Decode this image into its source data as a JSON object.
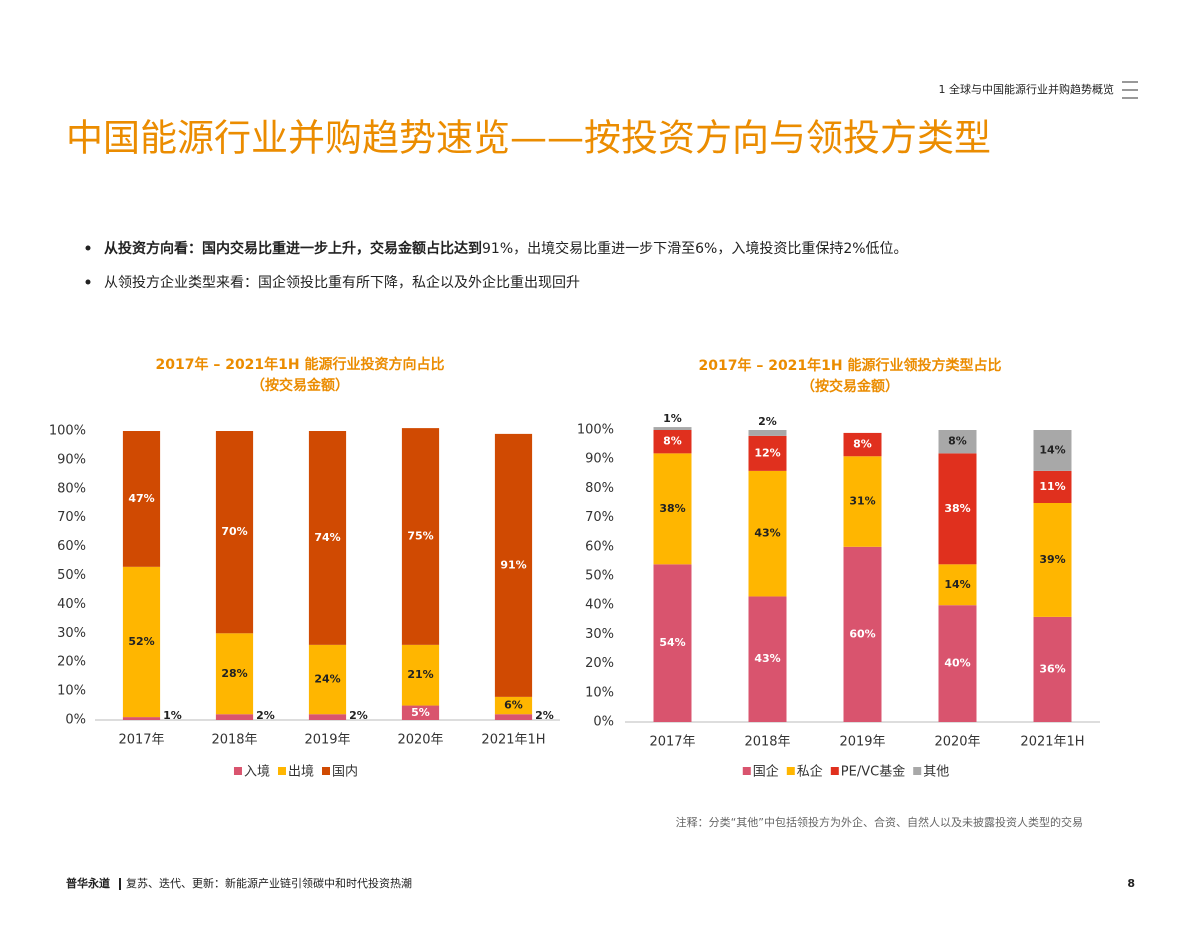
{
  "header": {
    "section": "1 全球与中国能源行业并购趋势概览"
  },
  "title": "中国能源行业并购趋势速览——按投资方向与领投方类型",
  "bullets": [
    {
      "bold": "从投资方向看：国内交易比重进一步上升，交易金额占比达到",
      "text": "91%，出境交易比重进一步下滑至6%，入境投资比重保持2%低位。"
    },
    {
      "text": "从领投方企业类型来看：国企领投比重有所下降，私企以及外企比重出现回升"
    }
  ],
  "chart_data": [
    {
      "type": "bar",
      "stacked": true,
      "title": "2017年 – 2021年1H 能源行业投资方向占比",
      "subtitle": "（按交易金额）",
      "categories": [
        "2017年",
        "2018年",
        "2019年",
        "2020年",
        "2021年1H"
      ],
      "series": [
        {
          "name": "入境",
          "color": "#d9546e",
          "values": [
            1,
            2,
            2,
            5,
            2
          ],
          "value_labels": [
            "1%",
            "2%",
            "2%",
            "5%",
            "2%"
          ]
        },
        {
          "name": "出境",
          "color": "#ffb600",
          "values": [
            52,
            28,
            24,
            21,
            6
          ],
          "value_labels": [
            "52%",
            "28%",
            "24%",
            "21%",
            "6%"
          ]
        },
        {
          "name": "国内",
          "color": "#d04a02",
          "values": [
            47,
            70,
            74,
            75,
            91
          ],
          "value_labels": [
            "47%",
            "70%",
            "74%",
            "75%",
            "91%"
          ]
        }
      ],
      "ylim": [
        0,
        100
      ],
      "yticks": [
        {
          "value": 0,
          "label": "0%"
        },
        {
          "value": 10,
          "label": "10%"
        },
        {
          "value": 20,
          "label": "20%"
        },
        {
          "value": 30,
          "label": "30%"
        },
        {
          "value": 40,
          "label": "40%"
        },
        {
          "value": 50,
          "label": "50%"
        },
        {
          "value": 60,
          "label": "60%"
        },
        {
          "value": 70,
          "label": "70%"
        },
        {
          "value": 80,
          "label": "80%"
        },
        {
          "value": 90,
          "label": "90%"
        },
        {
          "value": 100,
          "label": "100%"
        }
      ],
      "legend": "bottom"
    },
    {
      "type": "bar",
      "stacked": true,
      "title": "2017年 – 2021年1H 能源行业领投方类型占比",
      "subtitle": "（按交易金额）",
      "categories": [
        "2017年",
        "2018年",
        "2019年",
        "2020年",
        "2021年1H"
      ],
      "series": [
        {
          "name": "国企",
          "color": "#d9546e",
          "values": [
            54,
            43,
            60,
            40,
            36
          ],
          "value_labels": [
            "54%",
            "43%",
            "60%",
            "40%",
            "36%"
          ]
        },
        {
          "name": "私企",
          "color": "#ffb600",
          "values": [
            38,
            43,
            31,
            14,
            39
          ],
          "value_labels": [
            "38%",
            "43%",
            "31%",
            "14%",
            "39%"
          ]
        },
        {
          "name": "PE/VC基金",
          "color": "#e0301e",
          "values": [
            8,
            12,
            8,
            38,
            11
          ],
          "value_labels": [
            "8%",
            "12%",
            "8%",
            "38%",
            "11%"
          ]
        },
        {
          "name": "其他",
          "color": "#a8a8a8",
          "values": [
            1,
            2,
            null,
            8,
            14
          ],
          "value_labels": [
            "1%",
            "2%",
            null,
            "8%",
            "14%"
          ]
        }
      ],
      "ylim": [
        0,
        100
      ],
      "yticks": [
        {
          "value": 0,
          "label": "0%"
        },
        {
          "value": 10,
          "label": "10%"
        },
        {
          "value": 20,
          "label": "20%"
        },
        {
          "value": 30,
          "label": "30%"
        },
        {
          "value": 40,
          "label": "40%"
        },
        {
          "value": 50,
          "label": "50%"
        },
        {
          "value": 60,
          "label": "60%"
        },
        {
          "value": 70,
          "label": "70%"
        },
        {
          "value": 80,
          "label": "80%"
        },
        {
          "value": 90,
          "label": "90%"
        },
        {
          "value": 100,
          "label": "100%"
        }
      ],
      "legend": "bottom"
    }
  ],
  "note": "注释：分类“其他”中包括领投方为外企、合资、自然人以及未披露投资人类型的交易",
  "footer": {
    "brand": "普华永道",
    "tagline": "复苏、迭代、更新：新能源产业链引领碳中和时代投资热潮",
    "page": "8"
  }
}
